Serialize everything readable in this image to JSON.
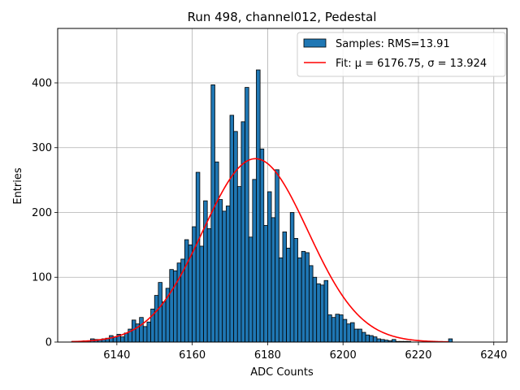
{
  "chart_data": {
    "type": "bar",
    "title": "Run 498, channel012, Pedestal",
    "xlabel": "ADC Counts",
    "ylabel": "Entries",
    "xlim": [
      6124.3,
      6243.5
    ],
    "ylim": [
      0,
      484
    ],
    "xticks": [
      6140,
      6160,
      6180,
      6200,
      6220,
      6240
    ],
    "yticks": [
      0,
      100,
      200,
      300,
      400
    ],
    "grid": true,
    "legend_position": "top-right",
    "legend": [
      {
        "label": "Samples: RMS=13.91",
        "kind": "patch",
        "color": "#1f77b4"
      },
      {
        "label": "Fit: μ = 6176.75, σ = 13.924",
        "kind": "line",
        "color": "#ff0000"
      }
    ],
    "histogram": {
      "name": "Samples",
      "bin_start": 6128,
      "bin_width": 1,
      "counts": [
        1,
        1,
        1,
        2,
        2,
        5,
        4,
        4,
        5,
        6,
        10,
        8,
        12,
        8,
        14,
        20,
        34,
        28,
        38,
        24,
        31,
        51,
        72,
        92,
        62,
        83,
        112,
        110,
        122,
        128,
        158,
        150,
        178,
        262,
        148,
        218,
        175,
        397,
        278,
        220,
        202,
        210,
        350,
        325,
        240,
        340,
        393,
        162,
        251,
        420,
        298,
        180,
        232,
        192,
        266,
        130,
        170,
        145,
        200,
        160,
        130,
        140,
        138,
        118,
        100,
        90,
        88,
        95,
        42,
        38,
        43,
        42,
        35,
        28,
        30,
        20,
        20,
        15,
        11,
        10,
        8,
        5,
        4,
        3,
        2,
        4,
        1,
        1,
        1,
        1,
        0,
        0,
        0,
        0,
        0,
        0,
        0,
        0,
        0,
        0,
        5,
        0,
        0,
        0,
        0,
        0,
        0,
        0,
        0,
        0
      ]
    },
    "fit": {
      "name": "Fit",
      "mu": 6176.75,
      "sigma": 13.924,
      "amplitude": 283,
      "x_range": [
        6128,
        6228
      ],
      "color": "#ff0000"
    }
  }
}
